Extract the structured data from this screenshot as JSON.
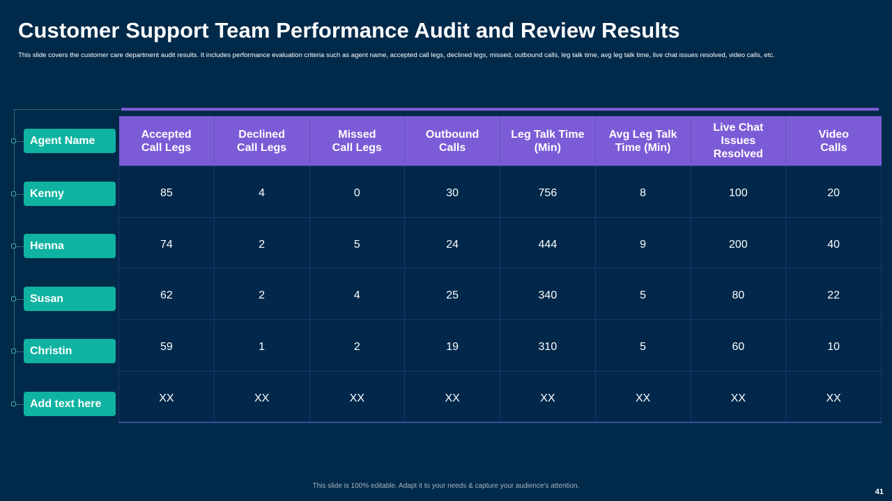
{
  "title": "Customer Support Team Performance Audit and Review Results",
  "subtitle": "This slide covers the customer care department audit results. It includes performance evaluation criteria such as agent name, accepted call legs, declined legs, missed, outbound calls, leg talk time, avg leg talk time, live chat issues resolved, video calls, etc.",
  "agent_header": "Agent Name",
  "columns": [
    "Accepted\nCall Legs",
    "Declined\nCall Legs",
    "Missed\nCall Legs",
    "Outbound\nCalls",
    "Leg Talk Time\n(Min)",
    "Avg Leg Talk\nTime (Min)",
    "Live Chat\nIssues\nResolved",
    "Video\nCalls"
  ],
  "rows": [
    {
      "agent": "Kenny",
      "values": [
        "85",
        "4",
        "0",
        "30",
        "756",
        "8",
        "100",
        "20"
      ]
    },
    {
      "agent": "Henna",
      "values": [
        "74",
        "2",
        "5",
        "24",
        "444",
        "9",
        "200",
        "40"
      ]
    },
    {
      "agent": "Susan",
      "values": [
        "62",
        "2",
        "4",
        "25",
        "340",
        "5",
        "80",
        "22"
      ]
    },
    {
      "agent": "Christin",
      "values": [
        "59",
        "1",
        "2",
        "19",
        "310",
        "5",
        "60",
        "10"
      ]
    },
    {
      "agent": "Add text  here",
      "values": [
        "XX",
        "XX",
        "XX",
        "XX",
        "XX",
        "XX",
        "XX",
        "XX"
      ]
    }
  ],
  "footer": "This slide is 100% editable.  Adapt it to your needs & capture your audience's attention.",
  "page_number": "41",
  "colors": {
    "background": "#012a4a",
    "header_purple": "#7b5cd6",
    "agent_teal": "#10b3a2"
  }
}
